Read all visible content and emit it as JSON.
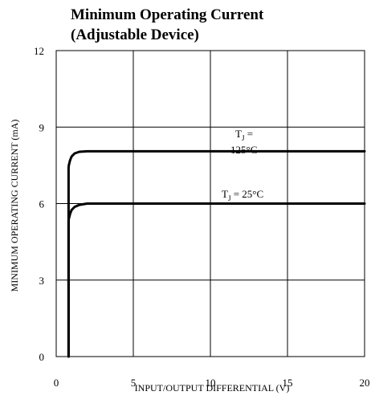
{
  "chart_data": {
    "type": "line",
    "title": "Minimum Operating Current",
    "subtitle": "(Adjustable Device)",
    "xlabel": "INPUT/OUTPUT DIFFERENTIAL (V)",
    "ylabel": "MINIMUM OPERATING CURRENT (mA)",
    "xlim": [
      0,
      20
    ],
    "ylim": [
      0,
      12
    ],
    "x_ticks": [
      "0",
      "5",
      "10",
      "15",
      "20"
    ],
    "y_ticks": [
      "0",
      "3",
      "6",
      "9",
      "12"
    ],
    "grid": true,
    "series": [
      {
        "name": "TJ = 125°C",
        "label_main": "T",
        "label_sub": "J",
        "label_line1": " =",
        "label_line2": "125°C",
        "x": [
          0.8,
          0.8,
          0.82,
          0.9,
          1.0,
          1.2,
          1.5,
          2.0,
          5,
          10,
          15,
          20
        ],
        "y": [
          0,
          7.4,
          7.5,
          7.7,
          7.85,
          7.97,
          8.03,
          8.05,
          8.05,
          8.05,
          8.05,
          8.05
        ]
      },
      {
        "name": "TJ = 25°C",
        "label_main": "T",
        "label_sub": "J",
        "label_line1": " = 25°C",
        "x": [
          0.8,
          0.8,
          0.82,
          0.9,
          1.0,
          1.2,
          1.5,
          2.0,
          2.5,
          5,
          10,
          15,
          20
        ],
        "y": [
          0,
          5.3,
          5.4,
          5.6,
          5.75,
          5.87,
          5.95,
          6.0,
          6.0,
          6.0,
          6.0,
          6.0,
          6.0
        ]
      }
    ]
  }
}
